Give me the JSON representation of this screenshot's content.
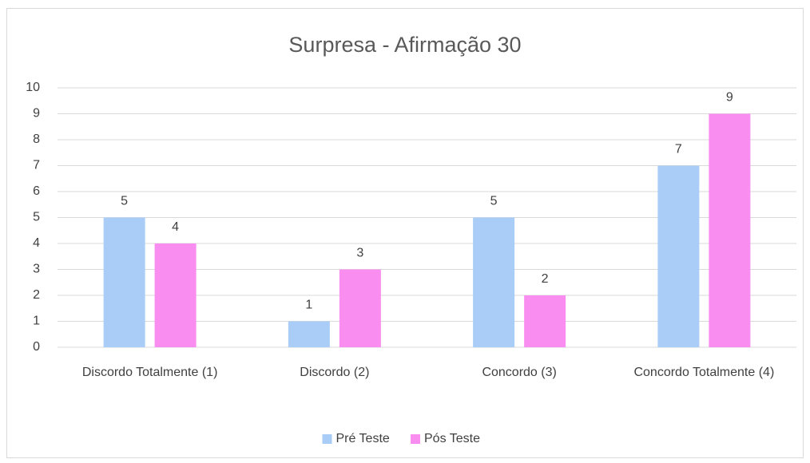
{
  "chart_data": {
    "type": "bar",
    "title": "Surpresa - Afirmação 30",
    "categories": [
      "Discordo Totalmente (1)",
      "Discordo (2)",
      "Concordo (3)",
      "Concordo Totalmente (4)"
    ],
    "series": [
      {
        "name": "Pré Teste",
        "color": "#a9cdf7",
        "values": [
          5,
          1,
          5,
          7
        ]
      },
      {
        "name": "Pós Teste",
        "color": "#f98ef0",
        "values": [
          4,
          3,
          2,
          9
        ]
      }
    ],
    "ylim": [
      0,
      10
    ],
    "yticks": [
      0,
      1,
      2,
      3,
      4,
      5,
      6,
      7,
      8,
      9,
      10
    ],
    "grid": true,
    "legend": "bottom"
  }
}
